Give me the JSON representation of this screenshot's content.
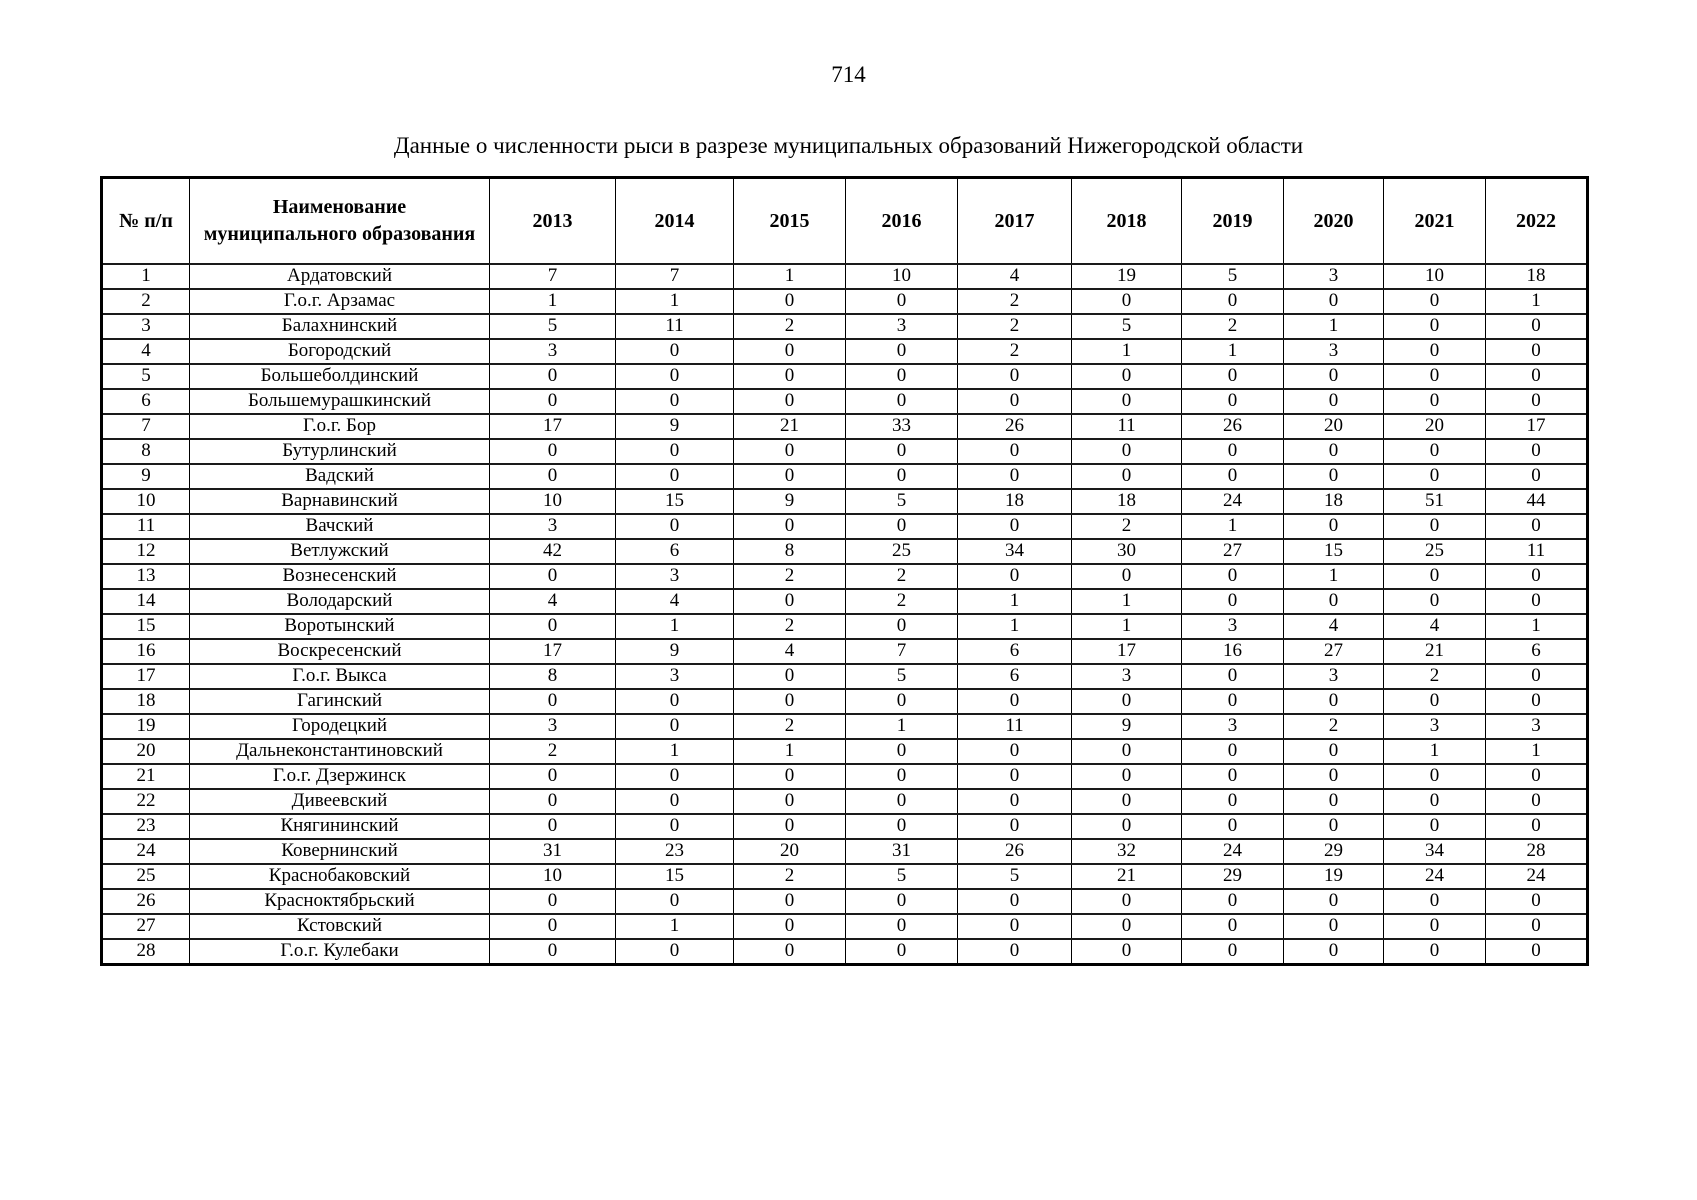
{
  "page": {
    "number": "714",
    "title": "Данные о численности рыси в разрезе муниципальных образований Нижегородской области"
  },
  "table": {
    "headers": [
      "№ п/п",
      "Наименование муниципального образования",
      "2013",
      "2014",
      "2015",
      "2016",
      "2017",
      "2018",
      "2019",
      "2020",
      "2021",
      "2022"
    ],
    "rows": [
      {
        "num": "1",
        "name": "Ардатовский",
        "values": [
          "7",
          "7",
          "1",
          "10",
          "4",
          "19",
          "5",
          "3",
          "10",
          "18"
        ]
      },
      {
        "num": "2",
        "name": "Г.о.г. Арзамас",
        "values": [
          "1",
          "1",
          "0",
          "0",
          "2",
          "0",
          "0",
          "0",
          "0",
          "1"
        ]
      },
      {
        "num": "3",
        "name": "Балахнинский",
        "values": [
          "5",
          "11",
          "2",
          "3",
          "2",
          "5",
          "2",
          "1",
          "0",
          "0"
        ]
      },
      {
        "num": "4",
        "name": "Богородский",
        "values": [
          "3",
          "0",
          "0",
          "0",
          "2",
          "1",
          "1",
          "3",
          "0",
          "0"
        ]
      },
      {
        "num": "5",
        "name": "Большеболдинский",
        "values": [
          "0",
          "0",
          "0",
          "0",
          "0",
          "0",
          "0",
          "0",
          "0",
          "0"
        ]
      },
      {
        "num": "6",
        "name": "Большемурашкинский",
        "values": [
          "0",
          "0",
          "0",
          "0",
          "0",
          "0",
          "0",
          "0",
          "0",
          "0"
        ]
      },
      {
        "num": "7",
        "name": "Г.о.г. Бор",
        "values": [
          "17",
          "9",
          "21",
          "33",
          "26",
          "11",
          "26",
          "20",
          "20",
          "17"
        ]
      },
      {
        "num": "8",
        "name": "Бутурлинский",
        "values": [
          "0",
          "0",
          "0",
          "0",
          "0",
          "0",
          "0",
          "0",
          "0",
          "0"
        ]
      },
      {
        "num": "9",
        "name": "Вадский",
        "values": [
          "0",
          "0",
          "0",
          "0",
          "0",
          "0",
          "0",
          "0",
          "0",
          "0"
        ]
      },
      {
        "num": "10",
        "name": "Варнавинский",
        "values": [
          "10",
          "15",
          "9",
          "5",
          "18",
          "18",
          "24",
          "18",
          "51",
          "44"
        ]
      },
      {
        "num": "11",
        "name": "Вачский",
        "values": [
          "3",
          "0",
          "0",
          "0",
          "0",
          "2",
          "1",
          "0",
          "0",
          "0"
        ]
      },
      {
        "num": "12",
        "name": "Ветлужский",
        "values": [
          "42",
          "6",
          "8",
          "25",
          "34",
          "30",
          "27",
          "15",
          "25",
          "11"
        ]
      },
      {
        "num": "13",
        "name": "Вознесенский",
        "values": [
          "0",
          "3",
          "2",
          "2",
          "0",
          "0",
          "0",
          "1",
          "0",
          "0"
        ]
      },
      {
        "num": "14",
        "name": "Володарский",
        "values": [
          "4",
          "4",
          "0",
          "2",
          "1",
          "1",
          "0",
          "0",
          "0",
          "0"
        ]
      },
      {
        "num": "15",
        "name": "Воротынский",
        "values": [
          "0",
          "1",
          "2",
          "0",
          "1",
          "1",
          "3",
          "4",
          "4",
          "1"
        ]
      },
      {
        "num": "16",
        "name": "Воскресенский",
        "values": [
          "17",
          "9",
          "4",
          "7",
          "6",
          "17",
          "16",
          "27",
          "21",
          "6"
        ]
      },
      {
        "num": "17",
        "name": "Г.о.г. Выкса",
        "values": [
          "8",
          "3",
          "0",
          "5",
          "6",
          "3",
          "0",
          "3",
          "2",
          "0"
        ]
      },
      {
        "num": "18",
        "name": "Гагинский",
        "values": [
          "0",
          "0",
          "0",
          "0",
          "0",
          "0",
          "0",
          "0",
          "0",
          "0"
        ]
      },
      {
        "num": "19",
        "name": "Городецкий",
        "values": [
          "3",
          "0",
          "2",
          "1",
          "11",
          "9",
          "3",
          "2",
          "3",
          "3"
        ]
      },
      {
        "num": "20",
        "name": "Дальнеконстантиновский",
        "values": [
          "2",
          "1",
          "1",
          "0",
          "0",
          "0",
          "0",
          "0",
          "1",
          "1"
        ]
      },
      {
        "num": "21",
        "name": "Г.о.г. Дзержинск",
        "values": [
          "0",
          "0",
          "0",
          "0",
          "0",
          "0",
          "0",
          "0",
          "0",
          "0"
        ]
      },
      {
        "num": "22",
        "name": "Дивеевский",
        "values": [
          "0",
          "0",
          "0",
          "0",
          "0",
          "0",
          "0",
          "0",
          "0",
          "0"
        ]
      },
      {
        "num": "23",
        "name": "Княгининский",
        "values": [
          "0",
          "0",
          "0",
          "0",
          "0",
          "0",
          "0",
          "0",
          "0",
          "0"
        ]
      },
      {
        "num": "24",
        "name": "Ковернинский",
        "values": [
          "31",
          "23",
          "20",
          "31",
          "26",
          "32",
          "24",
          "29",
          "34",
          "28"
        ]
      },
      {
        "num": "25",
        "name": "Краснобаковский",
        "values": [
          "10",
          "15",
          "2",
          "5",
          "5",
          "21",
          "29",
          "19",
          "24",
          "24"
        ]
      },
      {
        "num": "26",
        "name": "Красноктябрьский",
        "values": [
          "0",
          "0",
          "0",
          "0",
          "0",
          "0",
          "0",
          "0",
          "0",
          "0"
        ]
      },
      {
        "num": "27",
        "name": "Кстовский",
        "values": [
          "0",
          "1",
          "0",
          "0",
          "0",
          "0",
          "0",
          "0",
          "0",
          "0"
        ]
      },
      {
        "num": "28",
        "name": "Г.о.г. Кулебаки",
        "values": [
          "0",
          "0",
          "0",
          "0",
          "0",
          "0",
          "0",
          "0",
          "0",
          "0"
        ]
      }
    ]
  }
}
